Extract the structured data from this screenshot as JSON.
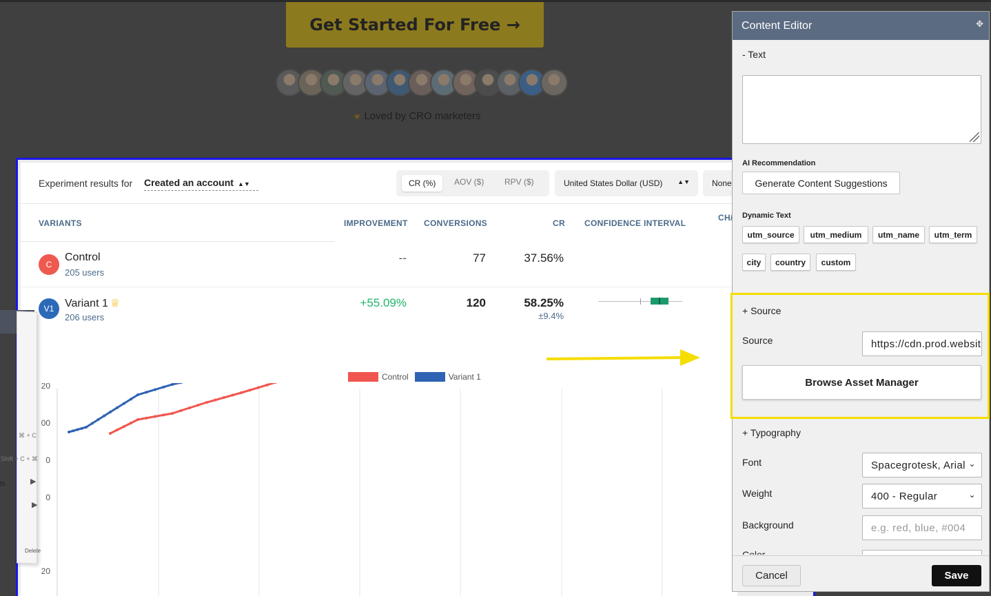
{
  "background_page": {
    "cta_label": "Get Started For Free →",
    "loved_text": "Loved by CRO marketers",
    "avatar_colors": [
      "#5a5a5a",
      "#6b6358",
      "#4f5a52",
      "#646464",
      "#5b6470",
      "#3f5873",
      "#6a5e5a",
      "#5d6b74",
      "#70635c",
      "#4c4c4c",
      "#5c6166",
      "#3a5e86",
      "#6c6660"
    ]
  },
  "experiment": {
    "results_for_label": "Experiment results for",
    "event_name": "Created an account",
    "metric_tabs": [
      "CR (%)",
      "AOV ($)",
      "RPV ($)"
    ],
    "active_metric": "CR (%)",
    "currency": "United States Dollar (USD)",
    "segment": "None",
    "columns": {
      "variants": "VARIANTS",
      "improvement": "IMPROVEMENT",
      "conversions": "CONVERSIONS",
      "cr": "CR",
      "confidence": "CONFIDENCE INTERVAL",
      "chance": "CH/"
    },
    "rows": [
      {
        "badge": "C",
        "badge_color": "#ef5a4f",
        "name": "Control",
        "users": "205 users",
        "improvement": "--",
        "conversions": "77",
        "cr": "37.56%",
        "cr_margin": ""
      },
      {
        "badge": "V1",
        "badge_color": "#2c6ab8",
        "name": "Variant 1",
        "users": "206 users",
        "improvement": "+55.09%",
        "improvement_color": "#22b46b",
        "conversions": "120",
        "cr": "58.25%",
        "cr_margin": "±9.4%"
      }
    ]
  },
  "chart_data": {
    "type": "line",
    "series": [
      {
        "name": "Control",
        "color": "#f0564f"
      },
      {
        "name": "Variant 1",
        "color": "#2f63b3"
      }
    ],
    "y_tick_labels": [
      "20",
      "00",
      "0",
      "0",
      "20"
    ],
    "grid": true
  },
  "context_menu": {
    "items": [
      "⌘ + C",
      "⌘ + Shift + C",
      "Delete"
    ],
    "side_fragment": "ts"
  },
  "editor": {
    "title": "Content Editor",
    "text_section": "- Text",
    "text_value": "",
    "ai_label": "AI Recommendation",
    "ai_button": "Generate Content Suggestions",
    "dynamic_label": "Dynamic Text",
    "dynamic_chips": [
      "utm_source",
      "utm_medium",
      "utm_name",
      "utm_term",
      "city",
      "country",
      "custom"
    ],
    "source_section": "+ Source",
    "source_label": "Source",
    "source_value": "https://cdn.prod.website-files.com",
    "browse_button": "Browse Asset Manager",
    "typography_section": "+ Typography",
    "font_label": "Font",
    "font_value": "Spacegrotesk, Arial",
    "weight_label": "Weight",
    "weight_value": "400 - Regular",
    "background_label": "Background",
    "background_placeholder": "e.g. red, blue, #004",
    "color_label": "Color",
    "cancel": "Cancel",
    "save": "Save"
  },
  "highlight_color": "#f5dd00"
}
